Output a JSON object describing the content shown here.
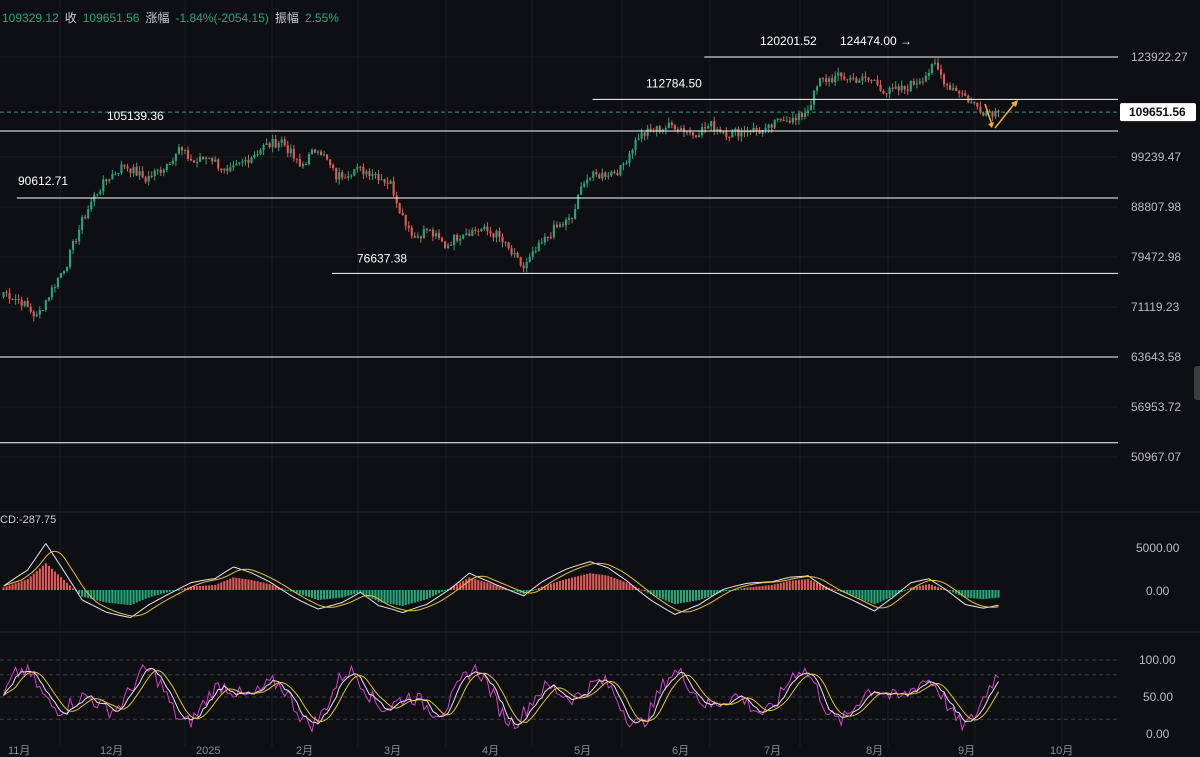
{
  "header": {
    "open_value": "109329.12",
    "close_label": "收",
    "close_value": "109651.56",
    "change_label": "涨幅",
    "change_value": "-1.84%(-2054.15)",
    "amplitude_label": "振幅",
    "amplitude_value": "2.55%"
  },
  "macd": {
    "label": "CD:-287.75"
  },
  "colors": {
    "up": "#26a67a",
    "down": "#e05a5a",
    "background": "#0e0f12",
    "line": "#ffffff",
    "price_tag": "#ffffff",
    "dashed": "#2e9c7a",
    "arrow": "#f5b324"
  },
  "chart_data": {
    "type": "candlestick",
    "price_axis": {
      "ticks": [
        123922.27,
        99239.47,
        88807.98,
        79472.98,
        71119.23,
        63643.58,
        56953.72,
        50967.07
      ],
      "tick_labels": [
        "123922.27",
        "99239.47",
        "88807.98",
        "79472.98",
        "71119.23",
        "63643.58",
        "56953.72",
        "50967.07"
      ],
      "scale": "log"
    },
    "current_price": {
      "value": 109651.56,
      "label": "109651.56"
    },
    "levels": [
      {
        "value": 123922.27,
        "from": 0.63
      },
      {
        "value": 112784.5,
        "from": 0.53
      },
      {
        "value": 105139.36,
        "from": 0.0
      },
      {
        "value": 90612.71,
        "from": 0.015
      },
      {
        "value": 76637.38,
        "from": 0.297
      },
      {
        "value": 63643.58,
        "from": 0.0
      },
      {
        "value": 52600,
        "from": 0.0
      }
    ],
    "annotations": [
      {
        "label": "120201.52",
        "value": 120201.52
      },
      {
        "label": "124474.00",
        "value": 124474.0
      },
      {
        "label": "112784.50",
        "value": 112784.5
      },
      {
        "label": "105139.36",
        "value": 105139.36
      },
      {
        "label": "90612.71",
        "value": 90612.71
      },
      {
        "label": "76637.38",
        "value": 76637.38
      }
    ],
    "macd_axis": {
      "tick_labels": [
        "5000.00",
        "0.00"
      ]
    },
    "kdj_axis": {
      "tick_labels": [
        "100.00",
        "50.00",
        "0.00"
      ]
    },
    "time_axis": {
      "tick_labels": [
        "11月",
        "12月",
        "2025",
        "2月",
        "3月",
        "4月",
        "5月",
        "6月",
        "7月",
        "8月",
        "9月",
        "10月"
      ]
    },
    "anchors": [
      [
        0,
        73500
      ],
      [
        6,
        72000
      ],
      [
        11,
        69500
      ],
      [
        16,
        74000
      ],
      [
        21,
        78500
      ],
      [
        26,
        86000
      ],
      [
        30,
        91000
      ],
      [
        35,
        95000
      ],
      [
        40,
        97500
      ],
      [
        47,
        94500
      ],
      [
        53,
        97000
      ],
      [
        58,
        101000
      ],
      [
        63,
        98000
      ],
      [
        68,
        99500
      ],
      [
        74,
        95500
      ],
      [
        80,
        98500
      ],
      [
        86,
        101500
      ],
      [
        92,
        103000
      ],
      [
        98,
        97000
      ],
      [
        104,
        101500
      ],
      [
        110,
        95000
      ],
      [
        116,
        96500
      ],
      [
        122,
        96000
      ],
      [
        128,
        93500
      ],
      [
        132,
        87000
      ],
      [
        136,
        83000
      ],
      [
        140,
        84500
      ],
      [
        146,
        81500
      ],
      [
        152,
        84000
      ],
      [
        158,
        84500
      ],
      [
        163,
        83500
      ],
      [
        168,
        80000
      ],
      [
        172,
        77500
      ],
      [
        176,
        80500
      ],
      [
        182,
        84500
      ],
      [
        188,
        86500
      ],
      [
        192,
        94500
      ],
      [
        198,
        95500
      ],
      [
        204,
        96500
      ],
      [
        210,
        104000
      ],
      [
        216,
        105500
      ],
      [
        222,
        106500
      ],
      [
        228,
        104500
      ],
      [
        234,
        106500
      ],
      [
        240,
        104500
      ],
      [
        246,
        105500
      ],
      [
        252,
        105000
      ],
      [
        258,
        108500
      ],
      [
        262,
        107500
      ],
      [
        266,
        110500
      ],
      [
        270,
        117500
      ],
      [
        276,
        118500
      ],
      [
        282,
        118000
      ],
      [
        288,
        117500
      ],
      [
        292,
        114500
      ],
      [
        298,
        115500
      ],
      [
        304,
        118500
      ],
      [
        308,
        121500
      ],
      [
        312,
        116500
      ],
      [
        316,
        115000
      ],
      [
        320,
        112000
      ],
      [
        324,
        110000
      ],
      [
        329,
        109651
      ]
    ],
    "macd": {
      "histogram_anchors": [
        [
          0,
          300
        ],
        [
          8,
          1300
        ],
        [
          14,
          3200
        ],
        [
          20,
          1200
        ],
        [
          26,
          -800
        ],
        [
          34,
          -1500
        ],
        [
          42,
          -1800
        ],
        [
          48,
          -900
        ],
        [
          54,
          -300
        ],
        [
          62,
          400
        ],
        [
          70,
          600
        ],
        [
          76,
          1500
        ],
        [
          82,
          1200
        ],
        [
          88,
          700
        ],
        [
          96,
          -300
        ],
        [
          104,
          -1200
        ],
        [
          112,
          -900
        ],
        [
          118,
          -300
        ],
        [
          124,
          -1400
        ],
        [
          132,
          -1900
        ],
        [
          140,
          -1100
        ],
        [
          148,
          300
        ],
        [
          154,
          1500
        ],
        [
          160,
          900
        ],
        [
          166,
          200
        ],
        [
          172,
          -500
        ],
        [
          178,
          400
        ],
        [
          186,
          1300
        ],
        [
          194,
          2000
        ],
        [
          200,
          1700
        ],
        [
          206,
          900
        ],
        [
          214,
          -500
        ],
        [
          222,
          -1700
        ],
        [
          230,
          -1200
        ],
        [
          238,
          -200
        ],
        [
          246,
          300
        ],
        [
          254,
          600
        ],
        [
          260,
          1100
        ],
        [
          266,
          1300
        ],
        [
          272,
          400
        ],
        [
          280,
          -600
        ],
        [
          288,
          -1700
        ],
        [
          294,
          -800
        ],
        [
          300,
          300
        ],
        [
          306,
          700
        ],
        [
          312,
          0
        ],
        [
          318,
          -900
        ],
        [
          324,
          -1100
        ],
        [
          329,
          -900
        ]
      ]
    }
  }
}
